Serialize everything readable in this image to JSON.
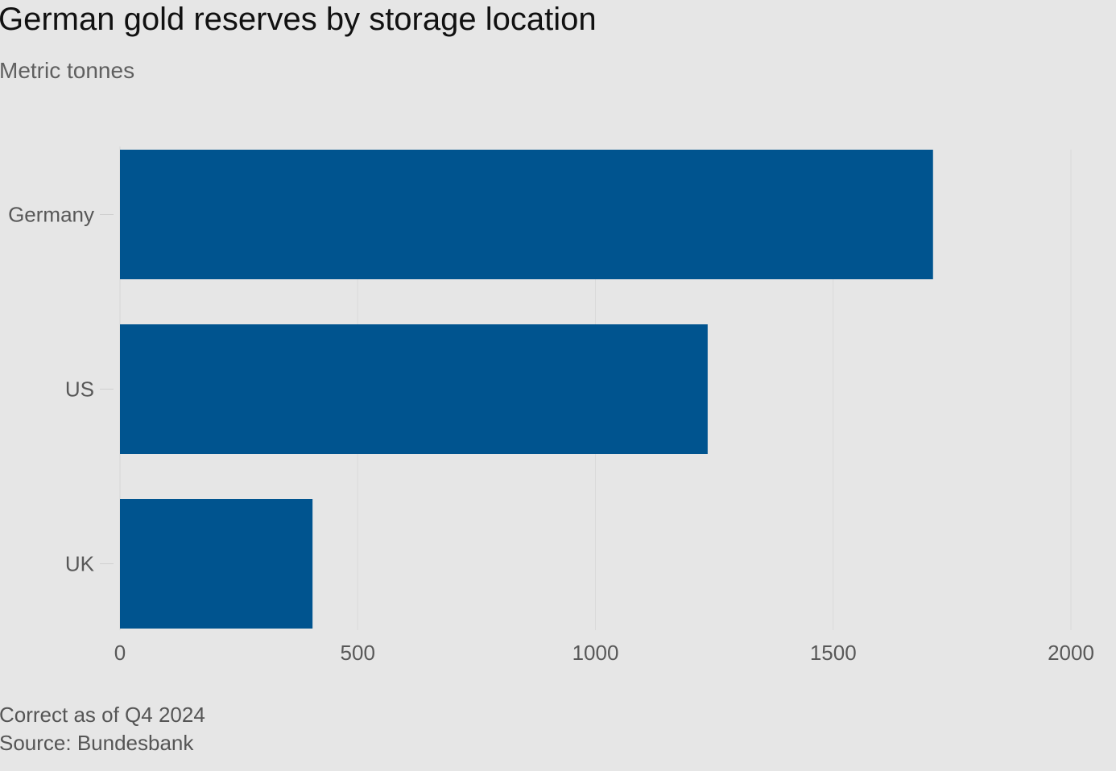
{
  "chart_data": {
    "type": "bar",
    "orientation": "horizontal",
    "title": "German gold reserves by storage location",
    "subtitle": "Metric tonnes",
    "categories": [
      "Germany",
      "US",
      "UK"
    ],
    "values": [
      1710,
      1236,
      405
    ],
    "xlim": [
      0,
      2000
    ],
    "xticks": [
      0,
      500,
      1000,
      1500,
      2000
    ],
    "xlabel": "",
    "ylabel": "",
    "grid": true,
    "bar_color": "#00548f",
    "notes": [
      "Correct as of Q4 2024",
      "Source: Bundesbank"
    ]
  }
}
